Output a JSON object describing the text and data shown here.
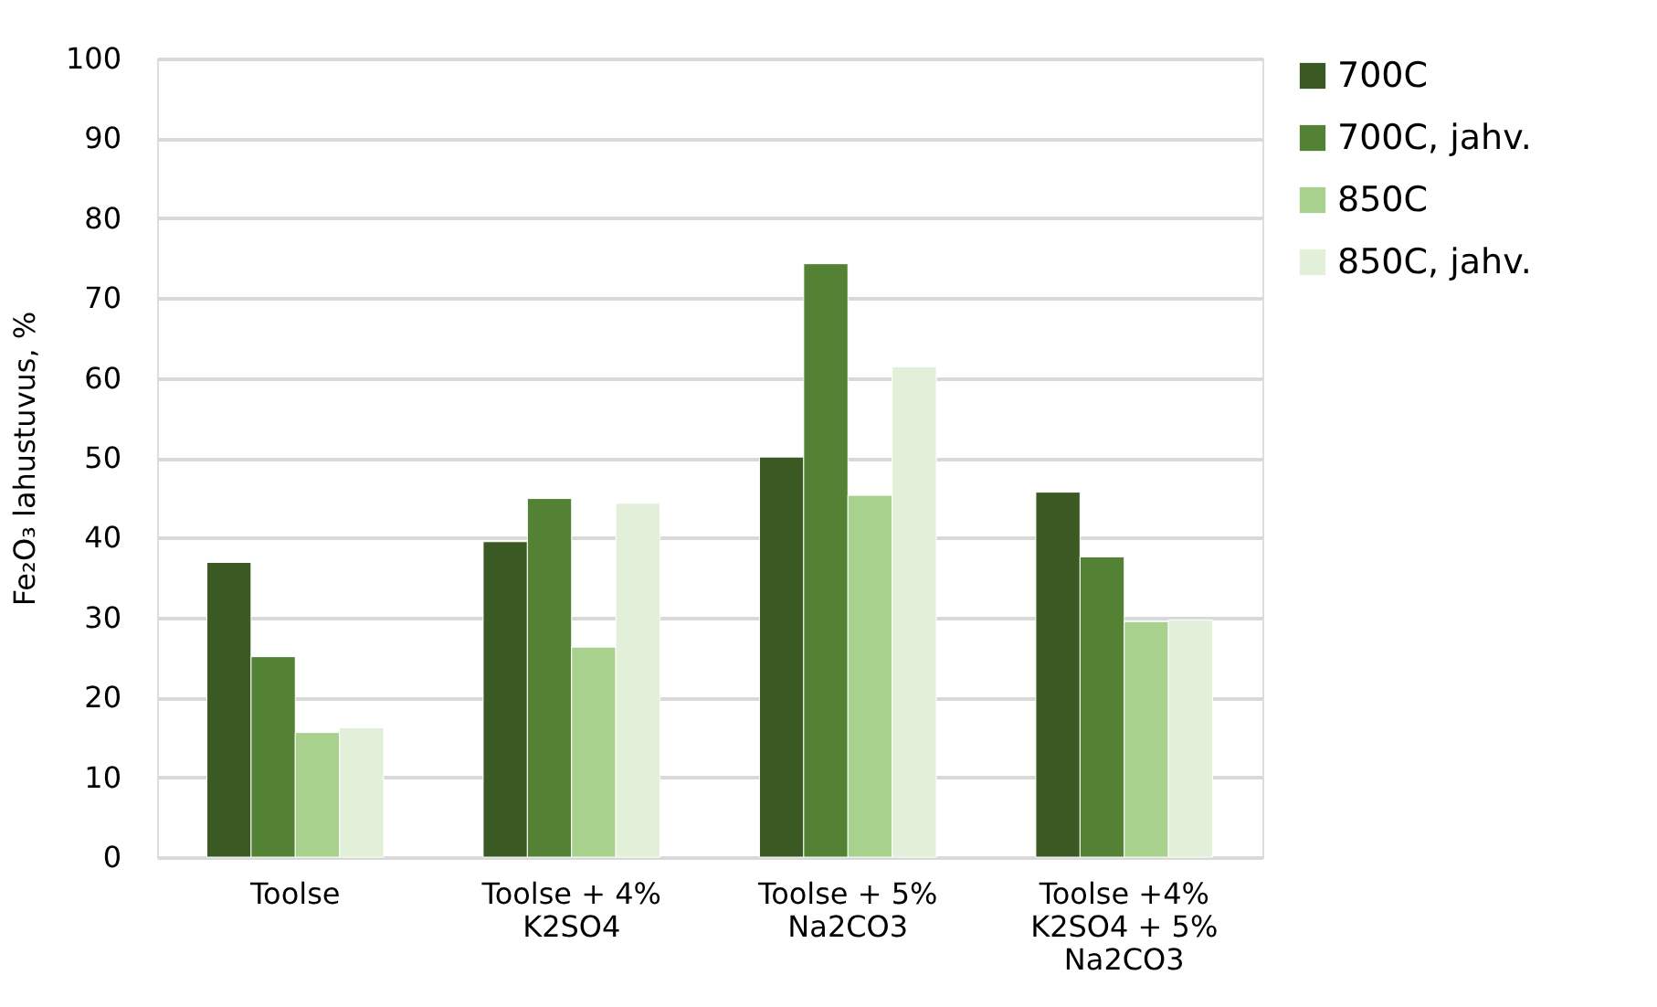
{
  "chart_data": {
    "type": "bar",
    "ylabel": "Fe₂O₃ lahustuvus, %",
    "categories": [
      "Toolse",
      "Toolse + 4%\nK2SO4",
      "Toolse + 5%\nNa2CO3",
      "Toolse +4%\nK2SO4 + 5%\nNa2CO3"
    ],
    "series": [
      {
        "name": "700C",
        "color": "#3b5a23",
        "values": [
          36.9,
          39.5,
          50.1,
          45.7
        ]
      },
      {
        "name": "700C, jahv.",
        "color": "#548235",
        "values": [
          25.1,
          44.9,
          74.3,
          37.6
        ]
      },
      {
        "name": "850C",
        "color": "#a9d18e",
        "values": [
          15.6,
          26.3,
          45.3,
          29.5
        ]
      },
      {
        "name": "850C, jahv.",
        "color": "#e2efd9",
        "values": [
          16.2,
          44.3,
          61.4,
          29.7
        ]
      }
    ],
    "ylim": [
      0,
      100
    ],
    "yticks": [
      0,
      10,
      20,
      30,
      40,
      50,
      60,
      70,
      80,
      90,
      100
    ],
    "grid": "y",
    "legend": "right"
  }
}
